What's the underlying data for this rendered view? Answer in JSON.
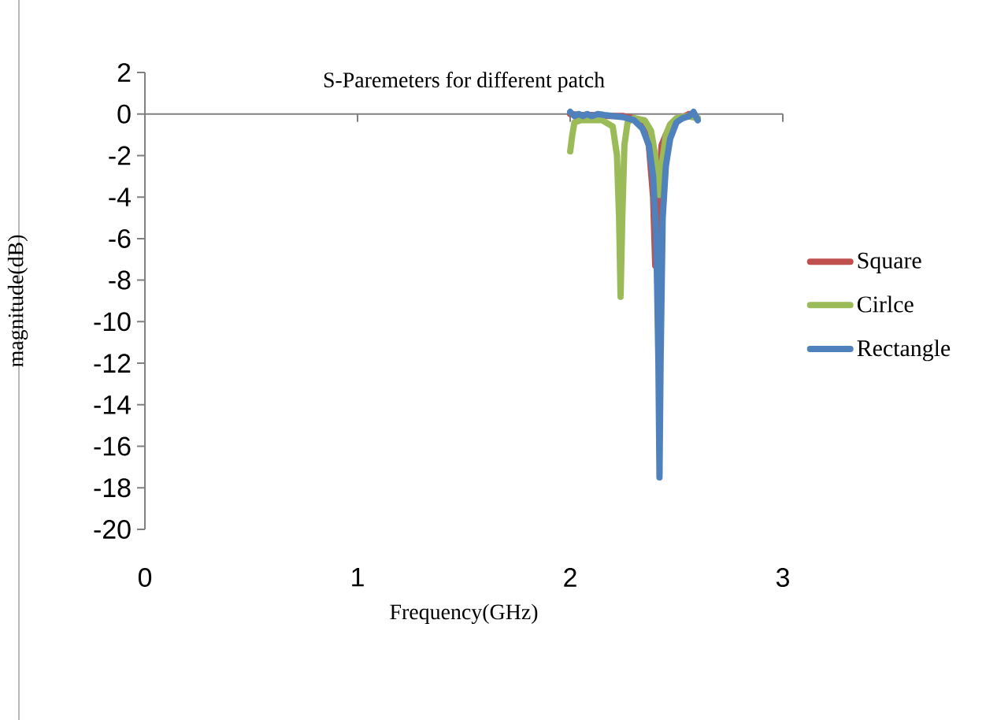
{
  "chart_data": {
    "type": "line",
    "title": "S-Paremeters for different patch",
    "xlabel": "Frequency(GHz)",
    "ylabel": "magnitude(dB)",
    "xlim": [
      0,
      3
    ],
    "ylim": [
      -20,
      2
    ],
    "xticks": [
      0,
      1,
      2,
      3
    ],
    "yticks": [
      -20,
      -18,
      -16,
      -14,
      -12,
      -10,
      -8,
      -6,
      -4,
      -2,
      0,
      2
    ],
    "legend": "right",
    "marker": "none",
    "line_style": "solid",
    "series": [
      {
        "name": "Square",
        "color": "#c0504d",
        "x": [
          2.0,
          2.05,
          2.1,
          2.15,
          2.2,
          2.25,
          2.3,
          2.34,
          2.37,
          2.39,
          2.4,
          2.41,
          2.42,
          2.43,
          2.45,
          2.48,
          2.52,
          2.56,
          2.6
        ],
        "values": [
          0.0,
          -0.05,
          -0.05,
          -0.1,
          -0.1,
          -0.1,
          -0.2,
          -0.5,
          -1.5,
          -4.0,
          -7.3,
          -6.0,
          -3.0,
          -1.5,
          -1.0,
          -0.5,
          -0.2,
          0.0,
          -0.2
        ]
      },
      {
        "name": "Cirlce",
        "color": "#9bbb59",
        "x": [
          2.0,
          2.01,
          2.02,
          2.05,
          2.1,
          2.15,
          2.2,
          2.22,
          2.23,
          2.237,
          2.245,
          2.255,
          2.27,
          2.3,
          2.35,
          2.38,
          2.4,
          2.41,
          2.42,
          2.43,
          2.45,
          2.47,
          2.5,
          2.55,
          2.6
        ],
        "values": [
          -1.8,
          -1.0,
          -0.4,
          -0.3,
          -0.3,
          -0.3,
          -0.6,
          -2.0,
          -5.0,
          -8.8,
          -5.0,
          -1.5,
          -0.4,
          -0.2,
          -0.3,
          -0.8,
          -2.0,
          -3.0,
          -3.9,
          -2.5,
          -1.0,
          -0.5,
          -0.2,
          -0.1,
          -0.2
        ]
      },
      {
        "name": "Rectangle",
        "color": "#4f81bd",
        "x": [
          2.0,
          2.02,
          2.04,
          2.06,
          2.08,
          2.1,
          2.13,
          2.16,
          2.2,
          2.25,
          2.3,
          2.34,
          2.37,
          2.39,
          2.405,
          2.415,
          2.42,
          2.425,
          2.435,
          2.45,
          2.47,
          2.5,
          2.53,
          2.56,
          2.58,
          2.6
        ],
        "values": [
          0.1,
          -0.1,
          0.0,
          -0.1,
          0.0,
          -0.1,
          0.0,
          -0.05,
          -0.1,
          -0.15,
          -0.3,
          -0.7,
          -1.5,
          -3.0,
          -6.0,
          -12.0,
          -17.5,
          -12.0,
          -5.0,
          -2.5,
          -1.2,
          -0.4,
          -0.2,
          -0.1,
          0.1,
          -0.3
        ]
      }
    ]
  }
}
